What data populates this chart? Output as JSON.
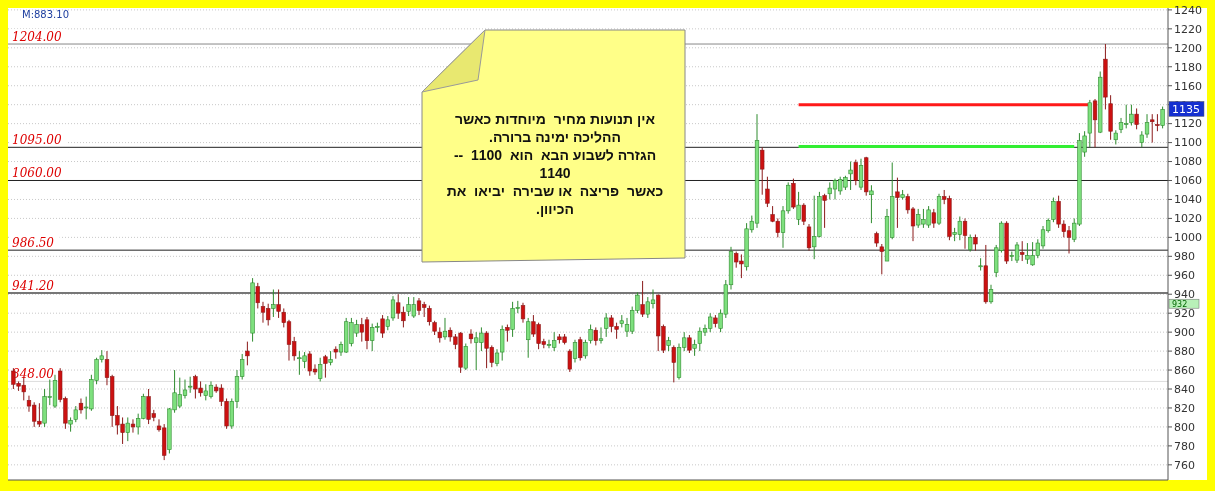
{
  "chart_data": {
    "type": "candlestick",
    "categories": [
      null,
      null,
      null,
      null,
      null,
      null,
      null,
      null,
      null,
      null,
      null,
      null,
      null,
      null,
      null,
      null,
      null,
      null,
      null,
      null,
      null,
      null,
      null,
      null,
      null,
      null,
      null,
      null,
      null,
      null,
      null,
      null,
      null,
      null,
      null,
      null,
      null,
      null,
      null,
      null,
      null,
      null,
      null,
      null,
      null,
      null,
      null,
      null,
      null,
      null,
      null,
      null,
      null,
      null,
      null,
      null,
      null,
      null,
      null,
      null,
      null,
      null,
      null,
      null,
      null,
      null,
      null,
      null,
      null,
      null,
      null,
      null,
      null,
      null,
      null,
      null,
      null,
      null,
      null,
      null,
      null,
      null,
      null,
      null,
      null,
      null,
      null,
      null,
      null,
      null,
      null,
      null,
      null,
      null,
      null,
      null,
      null,
      null,
      null,
      null,
      null,
      null,
      null,
      null,
      null,
      null,
      null,
      null,
      null,
      null,
      null,
      null,
      null,
      null,
      null,
      null,
      null,
      null,
      null,
      null,
      null,
      null,
      null,
      null,
      null,
      null,
      null,
      null,
      null,
      null,
      null,
      null,
      null,
      null,
      null,
      null,
      null,
      null,
      null,
      null,
      null,
      null,
      null,
      null,
      null,
      null,
      null,
      null,
      null,
      null,
      null,
      null,
      null,
      null,
      null,
      null,
      null,
      null,
      null,
      null,
      null,
      null,
      null,
      null,
      null,
      null,
      null,
      null,
      null,
      null,
      null,
      null,
      null,
      null,
      null,
      null,
      null,
      null,
      null,
      null,
      null,
      null,
      null,
      null,
      null,
      null,
      null,
      null,
      null,
      null,
      null,
      null,
      null,
      null,
      null,
      null,
      null,
      null,
      null,
      null,
      null,
      null,
      null,
      null,
      null,
      null,
      null,
      null,
      null,
      null,
      null,
      null,
      null,
      null,
      null,
      null,
      null,
      null,
      null,
      null,
      null,
      null
    ],
    "ohlc": [
      [
        859,
        862,
        840,
        845
      ],
      [
        846,
        848,
        838,
        843
      ],
      [
        844,
        852,
        828,
        837
      ],
      [
        828,
        833,
        816,
        822
      ],
      [
        823,
        826,
        800,
        806
      ],
      [
        806,
        825,
        800,
        803
      ],
      [
        804,
        840,
        800,
        832
      ],
      [
        831,
        850,
        823,
        832
      ],
      [
        822,
        855,
        820,
        849
      ],
      [
        859,
        862,
        826,
        829
      ],
      [
        830,
        832,
        798,
        804
      ],
      [
        803,
        810,
        795,
        807
      ],
      [
        808,
        822,
        805,
        818
      ],
      [
        825,
        830,
        814,
        818
      ],
      [
        820,
        832,
        808,
        821
      ],
      [
        819,
        855,
        817,
        850
      ],
      [
        849,
        873,
        845,
        871
      ],
      [
        871,
        881,
        868,
        875
      ],
      [
        871,
        880,
        844,
        852
      ],
      [
        853,
        855,
        800,
        812
      ],
      [
        812,
        822,
        792,
        802
      ],
      [
        803,
        810,
        782,
        794
      ],
      [
        794,
        810,
        785,
        804
      ],
      [
        803,
        808,
        794,
        800
      ],
      [
        800,
        814,
        792,
        809
      ],
      [
        809,
        835,
        808,
        832
      ],
      [
        832,
        840,
        803,
        808
      ],
      [
        814,
        818,
        806,
        810
      ],
      [
        801,
        808,
        795,
        797
      ],
      [
        799,
        803,
        765,
        770
      ],
      [
        776,
        820,
        772,
        819
      ],
      [
        818,
        860,
        815,
        836
      ],
      [
        822,
        852,
        820,
        834
      ],
      [
        833,
        850,
        830,
        839
      ],
      [
        842,
        853,
        836,
        843
      ],
      [
        853,
        855,
        830,
        840
      ],
      [
        841,
        848,
        832,
        836
      ],
      [
        833,
        845,
        828,
        838
      ],
      [
        832,
        848,
        830,
        844
      ],
      [
        842,
        845,
        836,
        838
      ],
      [
        841,
        845,
        822,
        827
      ],
      [
        827,
        830,
        798,
        801
      ],
      [
        801,
        830,
        798,
        827
      ],
      [
        827,
        860,
        820,
        853
      ],
      [
        853,
        877,
        850,
        871
      ],
      [
        880,
        890,
        865,
        875
      ],
      [
        899,
        957,
        890,
        952
      ],
      [
        948,
        952,
        925,
        931
      ],
      [
        927,
        932,
        910,
        921
      ],
      [
        925,
        930,
        907,
        913
      ],
      [
        925,
        945,
        916,
        929
      ],
      [
        929,
        945,
        915,
        922
      ],
      [
        921,
        925,
        905,
        910
      ],
      [
        911,
        913,
        870,
        887
      ],
      [
        890,
        895,
        870,
        875
      ],
      [
        873,
        880,
        855,
        873
      ],
      [
        869,
        879,
        862,
        875
      ],
      [
        877,
        880,
        854,
        859
      ],
      [
        861,
        866,
        855,
        858
      ],
      [
        851,
        873,
        848,
        866
      ],
      [
        874,
        876,
        852,
        867
      ],
      [
        868,
        880,
        865,
        871
      ],
      [
        882,
        885,
        872,
        879
      ],
      [
        879,
        890,
        875,
        887
      ],
      [
        879,
        915,
        878,
        911
      ],
      [
        888,
        915,
        885,
        910
      ],
      [
        899,
        913,
        895,
        908
      ],
      [
        908,
        915,
        890,
        900
      ],
      [
        913,
        916,
        882,
        891
      ],
      [
        891,
        909,
        880,
        905
      ],
      [
        906,
        910,
        900,
        906
      ],
      [
        914,
        918,
        894,
        899
      ],
      [
        906,
        917,
        902,
        913
      ],
      [
        915,
        938,
        912,
        934
      ],
      [
        931,
        940,
        914,
        920
      ],
      [
        921,
        927,
        905,
        912
      ],
      [
        922,
        937,
        917,
        929
      ],
      [
        917,
        937,
        915,
        929
      ],
      [
        933,
        936,
        918,
        923
      ],
      [
        929,
        932,
        916,
        926
      ],
      [
        925,
        928,
        907,
        911
      ],
      [
        910,
        912,
        897,
        901
      ],
      [
        900,
        905,
        889,
        894
      ],
      [
        895,
        915,
        892,
        901
      ],
      [
        902,
        905,
        890,
        895
      ],
      [
        895,
        898,
        882,
        887
      ],
      [
        899,
        900,
        857,
        863
      ],
      [
        862,
        888,
        860,
        885
      ],
      [
        898,
        903,
        888,
        893
      ],
      [
        889,
        900,
        860,
        894
      ],
      [
        889,
        905,
        880,
        899
      ],
      [
        899,
        901,
        862,
        883
      ],
      [
        884,
        886,
        863,
        868
      ],
      [
        867,
        882,
        864,
        878
      ],
      [
        879,
        907,
        870,
        903
      ],
      [
        905,
        908,
        890,
        902
      ],
      [
        903,
        932,
        895,
        925
      ],
      [
        926,
        933,
        920,
        926
      ],
      [
        928,
        931,
        910,
        914
      ],
      [
        892,
        915,
        873,
        911
      ],
      [
        911,
        918,
        895,
        898
      ],
      [
        908,
        910,
        882,
        888
      ],
      [
        890,
        893,
        883,
        887
      ],
      [
        887,
        892,
        883,
        887
      ],
      [
        884,
        900,
        880,
        891
      ],
      [
        895,
        898,
        888,
        892
      ],
      [
        895,
        898,
        887,
        889
      ],
      [
        880,
        882,
        858,
        861
      ],
      [
        872,
        892,
        868,
        889
      ],
      [
        892,
        895,
        870,
        873
      ],
      [
        875,
        892,
        872,
        889
      ],
      [
        891,
        908,
        888,
        903
      ],
      [
        902,
        905,
        886,
        891
      ],
      [
        891,
        905,
        888,
        893
      ],
      [
        904,
        920,
        895,
        915
      ],
      [
        915,
        918,
        900,
        906
      ],
      [
        906,
        910,
        893,
        903
      ],
      [
        909,
        918,
        905,
        912
      ],
      [
        901,
        915,
        895,
        908
      ],
      [
        901,
        927,
        898,
        923
      ],
      [
        923,
        942,
        920,
        939
      ],
      [
        929,
        954,
        916,
        919
      ],
      [
        919,
        937,
        915,
        932
      ],
      [
        930,
        945,
        925,
        934
      ],
      [
        939,
        940,
        880,
        896
      ],
      [
        906,
        908,
        878,
        881
      ],
      [
        886,
        895,
        880,
        891
      ],
      [
        884,
        886,
        847,
        868
      ],
      [
        852,
        888,
        850,
        884
      ],
      [
        884,
        900,
        880,
        894
      ],
      [
        894,
        897,
        878,
        881
      ],
      [
        883,
        892,
        875,
        887
      ],
      [
        888,
        905,
        880,
        901
      ],
      [
        900,
        908,
        896,
        904
      ],
      [
        904,
        920,
        900,
        916
      ],
      [
        915,
        918,
        905,
        909
      ],
      [
        904,
        924,
        900,
        920
      ],
      [
        919,
        955,
        915,
        950
      ],
      [
        950,
        990,
        945,
        985
      ],
      [
        983,
        985,
        968,
        974
      ],
      [
        975,
        982,
        957,
        972
      ],
      [
        969,
        1015,
        965,
        1009
      ],
      [
        1008,
        1023,
        1005,
        1017
      ],
      [
        1015,
        1130,
        1010,
        1102
      ],
      [
        1092,
        1095,
        1045,
        1072
      ],
      [
        1051,
        1064,
        1032,
        1036
      ],
      [
        1024,
        1033,
        1016,
        1017
      ],
      [
        1017,
        1020,
        1000,
        1005
      ],
      [
        1005,
        1033,
        989,
        1028
      ],
      [
        1028,
        1058,
        1025,
        1055
      ],
      [
        1057,
        1062,
        1030,
        1032
      ],
      [
        1019,
        1048,
        1013,
        1034
      ],
      [
        1034,
        1036,
        1013,
        1017
      ],
      [
        1011,
        1014,
        986,
        989
      ],
      [
        990,
        1044,
        977,
        1001
      ],
      [
        1001,
        1048,
        1000,
        1043
      ],
      [
        1044,
        1046,
        1010,
        1039
      ],
      [
        1046,
        1058,
        1040,
        1052
      ],
      [
        1051,
        1062,
        1040,
        1060
      ],
      [
        1049,
        1064,
        1045,
        1061
      ],
      [
        1053,
        1065,
        1050,
        1063
      ],
      [
        1067,
        1080,
        1050,
        1071
      ],
      [
        1079,
        1082,
        1055,
        1060
      ],
      [
        1053,
        1083,
        1050,
        1076
      ],
      [
        1084,
        1085,
        1044,
        1048
      ],
      [
        1045,
        1055,
        1015,
        1049
      ],
      [
        1004,
        1006,
        990,
        994
      ],
      [
        990,
        993,
        961,
        985
      ],
      [
        975,
        1030,
        975,
        1022
      ],
      [
        1000,
        1079,
        998,
        1043
      ],
      [
        1048,
        1063,
        1010,
        1042
      ],
      [
        1042,
        1050,
        1040,
        1045
      ],
      [
        1043,
        1046,
        1025,
        1029
      ],
      [
        1030,
        1032,
        996,
        1012
      ],
      [
        1013,
        1030,
        1010,
        1024
      ],
      [
        1014,
        1030,
        1010,
        1019
      ],
      [
        1013,
        1033,
        1010,
        1029
      ],
      [
        1026,
        1030,
        1010,
        1015
      ],
      [
        1015,
        1046,
        1013,
        1043
      ],
      [
        1043,
        1050,
        1035,
        1040
      ],
      [
        1041,
        1044,
        997,
        1001
      ],
      [
        1003,
        1010,
        996,
        1005
      ],
      [
        1003,
        1022,
        997,
        1017
      ],
      [
        1017,
        1020,
        988,
        1002
      ],
      [
        987,
        1003,
        985,
        1000
      ],
      [
        1000,
        1003,
        986,
        993
      ],
      [
        970,
        978,
        965,
        970
      ],
      [
        970,
        992,
        930,
        932
      ],
      [
        932,
        950,
        930,
        945
      ],
      [
        963,
        992,
        958,
        989
      ],
      [
        986,
        1017,
        984,
        1015
      ],
      [
        1015,
        1017,
        972,
        975
      ],
      [
        981,
        985,
        975,
        981
      ],
      [
        976,
        995,
        973,
        992
      ],
      [
        984,
        996,
        975,
        982
      ],
      [
        977,
        994,
        972,
        981
      ],
      [
        971,
        995,
        970,
        981
      ],
      [
        981,
        998,
        978,
        994
      ],
      [
        991,
        1012,
        988,
        1008
      ],
      [
        1007,
        1020,
        1005,
        1018
      ],
      [
        1019,
        1042,
        1016,
        1038
      ],
      [
        1038,
        1044,
        1010,
        1014
      ],
      [
        1014,
        1018,
        1000,
        1006
      ],
      [
        1007,
        1012,
        983,
        1000
      ],
      [
        998,
        1020,
        995,
        1015
      ],
      [
        1014,
        1110,
        1012,
        1102
      ],
      [
        1090,
        1112,
        1085,
        1107
      ],
      [
        1110,
        1145,
        1095,
        1142
      ],
      [
        1144,
        1146,
        1095,
        1124
      ],
      [
        1111,
        1175,
        1110,
        1169
      ],
      [
        1188,
        1204,
        1135,
        1148
      ],
      [
        1141,
        1150,
        1103,
        1112
      ],
      [
        1103,
        1113,
        1098,
        1110
      ],
      [
        1114,
        1126,
        1110,
        1121
      ],
      [
        1120,
        1140,
        1115,
        1120
      ],
      [
        1121,
        1140,
        1118,
        1130
      ],
      [
        1130,
        1136,
        1114,
        1119
      ],
      [
        1100,
        1112,
        1095,
        1108
      ],
      [
        1109,
        1130,
        1105,
        1121
      ],
      [
        1124,
        1130,
        1100,
        1122
      ],
      [
        1119,
        1130,
        1112,
        1118
      ],
      [
        1118,
        1138,
        1115,
        1135
      ]
    ],
    "series": [
      {
        "type": "line",
        "color": "#ff1a1a",
        "values": [
          null,
          null,
          null,
          null,
          null,
          null,
          null,
          null,
          null,
          null,
          null,
          null,
          null,
          null,
          null,
          null,
          null,
          null,
          null,
          null,
          null,
          null,
          null,
          null,
          null,
          null,
          null,
          null,
          null,
          null,
          null,
          null,
          null,
          null,
          null,
          null,
          null,
          null,
          null,
          null,
          null,
          null,
          null,
          null,
          null,
          null,
          null,
          null,
          null,
          null,
          null,
          null,
          null,
          null,
          null,
          null,
          null,
          null,
          null,
          null,
          null,
          null,
          null,
          null,
          null,
          null,
          null,
          null,
          null,
          null,
          null,
          null,
          null,
          null,
          null,
          null,
          null,
          null,
          null,
          null,
          null,
          null,
          null,
          null,
          null,
          null,
          null,
          null,
          null,
          null,
          null,
          null,
          null,
          null,
          null,
          null,
          null,
          null,
          null,
          null,
          null,
          null,
          null,
          null,
          null,
          null,
          null,
          null,
          null,
          null,
          null,
          null,
          null,
          null,
          null,
          null,
          null,
          null,
          null,
          null,
          null,
          null,
          null,
          null,
          null,
          null,
          null,
          null,
          null,
          null,
          null,
          null,
          null,
          null,
          null,
          null,
          null,
          null,
          null,
          null,
          null,
          null,
          null,
          null,
          null,
          null,
          null,
          null,
          null,
          null,
          null,
          1140,
          1140,
          1140,
          1140,
          1140,
          1140,
          1140,
          1140,
          1140,
          1140,
          1140,
          1140,
          1140,
          1140,
          1140,
          1140,
          1140,
          1140,
          1140,
          1140,
          1140,
          1140,
          1140,
          1140,
          1140,
          1140,
          1140,
          1140,
          1140,
          1140,
          1140,
          1140,
          1140,
          1140,
          1140,
          1140,
          1140,
          1140,
          1140,
          1140,
          1140,
          1140,
          1140,
          1140,
          1140,
          1140,
          1140,
          1140,
          1140,
          1140,
          1140,
          1140,
          1140,
          1140,
          1140,
          1140,
          1140,
          null,
          null,
          null,
          null,
          null,
          null,
          null,
          null,
          null,
          null,
          null,
          null,
          null,
          null
        ]
      },
      {
        "type": "line",
        "color": "#33ee33",
        "values": [
          null,
          null,
          null,
          null,
          null,
          null,
          null,
          null,
          null,
          null,
          null,
          null,
          null,
          null,
          null,
          null,
          null,
          null,
          null,
          null,
          null,
          null,
          null,
          null,
          null,
          null,
          null,
          null,
          null,
          null,
          null,
          null,
          null,
          null,
          null,
          null,
          null,
          null,
          null,
          null,
          null,
          null,
          null,
          null,
          null,
          null,
          null,
          null,
          null,
          null,
          null,
          null,
          null,
          null,
          null,
          null,
          null,
          null,
          null,
          null,
          null,
          null,
          null,
          null,
          null,
          null,
          null,
          null,
          null,
          null,
          null,
          null,
          null,
          null,
          null,
          null,
          null,
          null,
          null,
          null,
          null,
          null,
          null,
          null,
          null,
          null,
          null,
          null,
          null,
          null,
          null,
          null,
          null,
          null,
          null,
          null,
          null,
          null,
          null,
          null,
          null,
          null,
          null,
          null,
          null,
          null,
          null,
          null,
          null,
          null,
          null,
          null,
          null,
          null,
          null,
          null,
          null,
          null,
          null,
          null,
          null,
          null,
          null,
          null,
          null,
          null,
          null,
          null,
          null,
          null,
          null,
          null,
          null,
          null,
          null,
          null,
          null,
          null,
          null,
          null,
          null,
          null,
          null,
          null,
          null,
          null,
          null,
          null,
          null,
          null,
          null,
          1096,
          1096,
          1096,
          1096,
          1096,
          1096,
          1096,
          1096,
          1096,
          1096,
          1096,
          1096,
          1096,
          1096,
          1096,
          1096,
          1096,
          1096,
          1096,
          1096,
          1096,
          1096,
          1096,
          1096,
          1096,
          1096,
          1096,
          1096,
          1096,
          1096,
          1096,
          1096,
          1096,
          1096,
          1096,
          1096,
          1096,
          1096,
          1096,
          1096,
          1096,
          1096,
          1096,
          1096,
          1096,
          1096,
          1096,
          1096,
          1096,
          1096,
          1096,
          1096,
          1096,
          1096,
          null,
          null,
          null,
          null,
          null,
          null,
          null,
          null,
          null,
          null,
          null,
          null,
          null,
          null,
          null,
          null,
          null
        ]
      }
    ],
    "ylim": [
      744,
      1242
    ],
    "yticks": [
      760,
      780,
      800,
      820,
      840,
      860,
      880,
      900,
      920,
      940,
      960,
      980,
      1000,
      1020,
      1040,
      1060,
      1080,
      1100,
      1120,
      1140,
      1160,
      1180,
      1200,
      1220,
      1240
    ],
    "grid": "y",
    "ref_lines": [
      {
        "axis": "y",
        "value": 1204,
        "label": "1204.00",
        "color": "#888888"
      },
      {
        "axis": "y",
        "value": 1095,
        "label": "1095.00",
        "color": "#222222"
      },
      {
        "axis": "y",
        "value": 1060,
        "label": "1060.00",
        "color": "#222222"
      },
      {
        "axis": "y",
        "value": 986.5,
        "label": "986.50",
        "color": "#222222"
      },
      {
        "axis": "y",
        "value": 941.2,
        "label": "941.20",
        "color": "#777777"
      },
      {
        "axis": "y",
        "value": 848,
        "label": "848.00",
        "color": "#dddddd"
      }
    ],
    "annotations": [
      "M:883.10",
      {
        "text": "1135",
        "y": 1135
      },
      "932",
      "אין תנועות מחיר  מיוחדות כאשר\nההליכה ימינה ברורה.\nהגזרה לשבוע הבא  הוא  1100  --\n1140\nכאשר  פריצה  או שבירה  יביאו  את\nהכיוון."
    ]
  }
}
